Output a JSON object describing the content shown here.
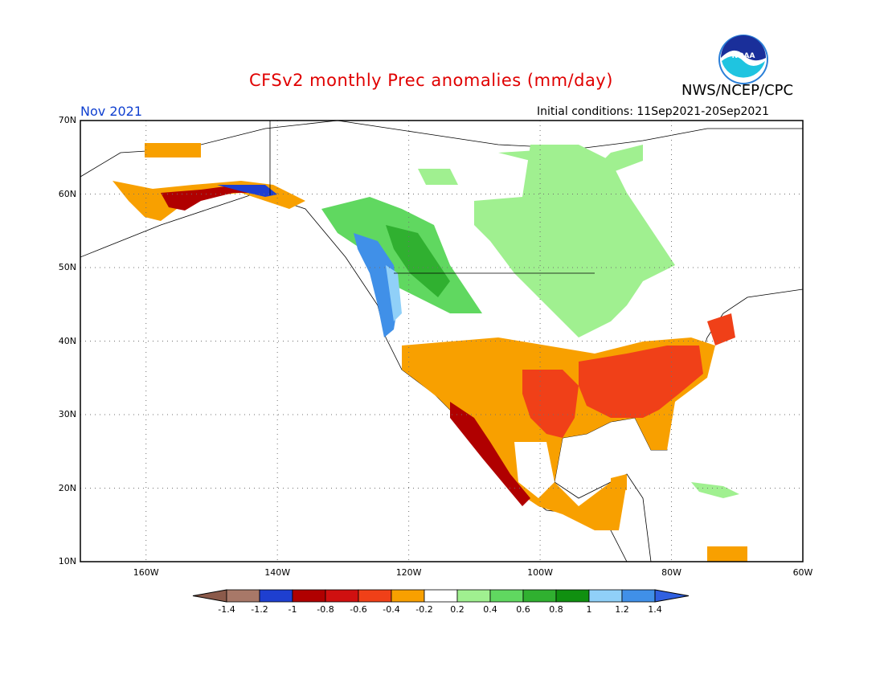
{
  "header": {
    "title": "CFSv2 monthly Prec anomalies (mm/day)",
    "agency": "NWS/NCEP/CPC",
    "month": "Nov 2021",
    "initial_conditions": "Initial conditions: 11Sep2021-20Sep2021",
    "logo_text": "NOAA"
  },
  "axes": {
    "lat_labels": [
      "70N",
      "60N",
      "50N",
      "40N",
      "30N",
      "20N",
      "10N"
    ],
    "lon_labels": [
      "160W",
      "140W",
      "120W",
      "100W",
      "80W",
      "60W"
    ]
  },
  "colorbar": {
    "labels": [
      "-1.4",
      "-1.2",
      "-1",
      "-0.8",
      "-0.6",
      "-0.4",
      "-0.2",
      "0.2",
      "0.4",
      "0.6",
      "0.8",
      "1",
      "1.2",
      "1.4"
    ],
    "colors": [
      "#8b5a4a",
      "#a87868",
      "#1e3fd0",
      "#b00000",
      "#d01010",
      "#f04018",
      "#f8a000",
      "#ffffff",
      "#a0f090",
      "#60d860",
      "#30b030",
      "#109010",
      "#90d0f8",
      "#4090e8",
      "#3060e0"
    ]
  },
  "map_data": {
    "variable": "precipitation anomaly",
    "units": "mm/day",
    "lon_range": [
      -170,
      -60
    ],
    "lat_range": [
      10,
      70
    ],
    "grid_lines": true,
    "regions": [
      {
        "name": "southern-us",
        "color": "#f8a000"
      },
      {
        "name": "southeast-us",
        "color": "#f04018"
      },
      {
        "name": "texas",
        "color": "#f04018"
      },
      {
        "name": "mexico-west-coast",
        "color": "#b00000"
      },
      {
        "name": "pacific-northwest",
        "color": "#4090e8"
      },
      {
        "name": "canada-central",
        "color": "#a0f090"
      },
      {
        "name": "bc-rockies",
        "color": "#30b030"
      },
      {
        "name": "alaska",
        "color": "#f8a000"
      }
    ]
  }
}
